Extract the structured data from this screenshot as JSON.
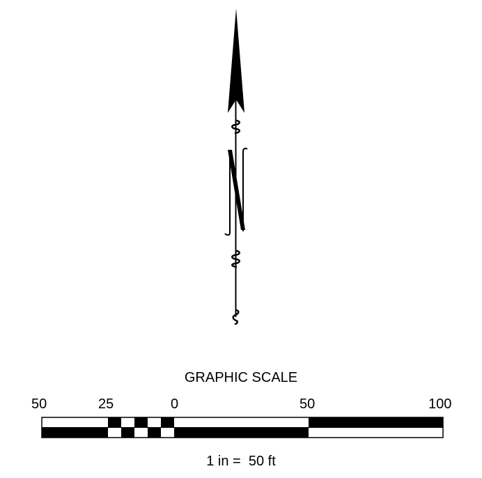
{
  "north_arrow": {
    "icon": "north-arrow-icon",
    "letter_icon": "n-letter-icon"
  },
  "graphic_scale": {
    "title": "GRAPHIC SCALE",
    "tick_labels": [
      "50",
      "25",
      "0",
      "50",
      "100"
    ],
    "ratio_text": "1 in =  50 ft",
    "fill_color": "#000000",
    "empty_color": "#ffffff"
  }
}
